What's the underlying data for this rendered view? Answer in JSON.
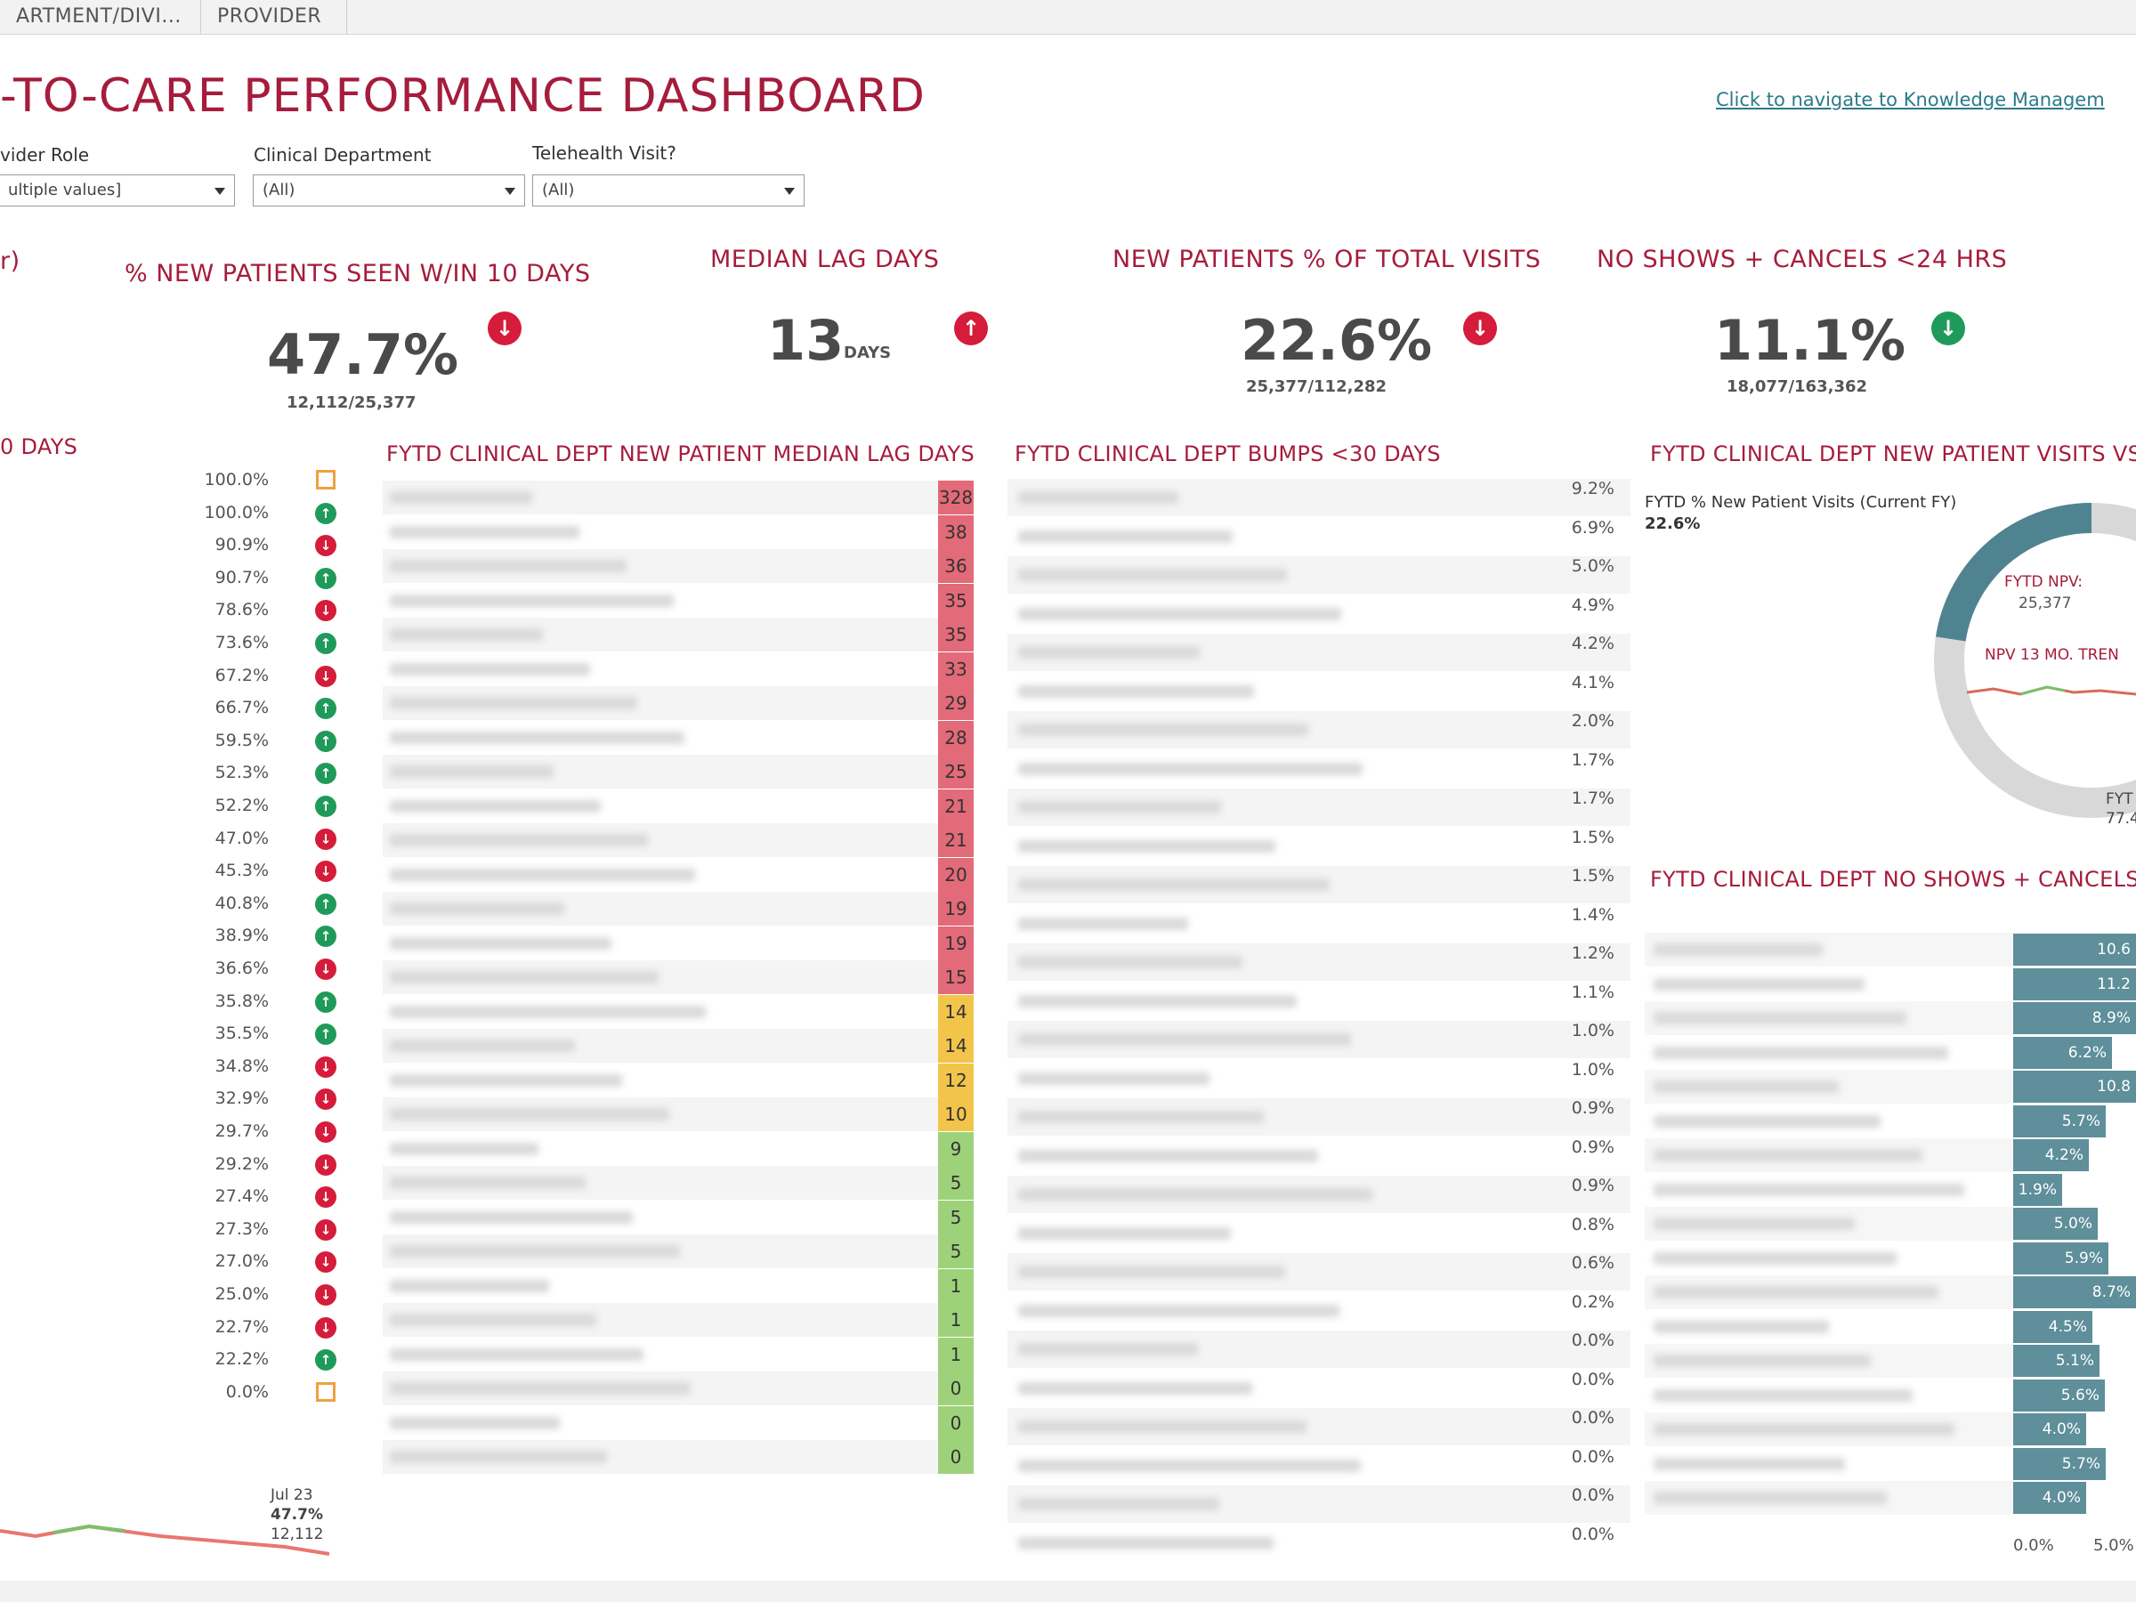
{
  "tabs": [
    "ARTMENT/DIVI...",
    "PROVIDER"
  ],
  "title": "-TO-CARE PERFORMANCE DASHBOARD",
  "nav_link": "Click to navigate to Knowledge Managem",
  "filters": [
    {
      "label": "vider Role",
      "value": "ultiple values]"
    },
    {
      "label": "Clinical Department",
      "value": "(All)"
    },
    {
      "label": "Telehealth Visit?",
      "value": "(All)"
    }
  ],
  "left_edge_label": "r)",
  "kpis": [
    {
      "title": "% NEW PATIENTS SEEN W/IN 10 DAYS",
      "value": "47.7%",
      "unit": "",
      "sub": "12,112/25,377",
      "trend": "down"
    },
    {
      "title": "MEDIAN LAG DAYS",
      "value": "13",
      "unit": "DAYS",
      "sub": "",
      "trend": "up"
    },
    {
      "title": "NEW PATIENTS % OF TOTAL VISITS",
      "value": "22.6%",
      "unit": "",
      "sub": "25,377/112,282",
      "trend": "down"
    },
    {
      "title": "NO SHOWS + CANCELS <24 HRS",
      "value": "11.1%",
      "unit": "",
      "sub": "18,077/163,362",
      "trend": "down"
    }
  ],
  "left_list": {
    "title": "0 DAYS",
    "rows": [
      {
        "pct": "100.0%",
        "icon": "box"
      },
      {
        "pct": "100.0%",
        "icon": "up"
      },
      {
        "pct": "90.9%",
        "icon": "down"
      },
      {
        "pct": "90.7%",
        "icon": "up"
      },
      {
        "pct": "78.6%",
        "icon": "down"
      },
      {
        "pct": "73.6%",
        "icon": "up"
      },
      {
        "pct": "67.2%",
        "icon": "down"
      },
      {
        "pct": "66.7%",
        "icon": "up"
      },
      {
        "pct": "59.5%",
        "icon": "up"
      },
      {
        "pct": "52.3%",
        "icon": "up"
      },
      {
        "pct": "52.2%",
        "icon": "up"
      },
      {
        "pct": "47.0%",
        "icon": "down"
      },
      {
        "pct": "45.3%",
        "icon": "down"
      },
      {
        "pct": "40.8%",
        "icon": "up"
      },
      {
        "pct": "38.9%",
        "icon": "up"
      },
      {
        "pct": "36.6%",
        "icon": "down"
      },
      {
        "pct": "35.8%",
        "icon": "up"
      },
      {
        "pct": "35.5%",
        "icon": "up"
      },
      {
        "pct": "34.8%",
        "icon": "down"
      },
      {
        "pct": "32.9%",
        "icon": "down"
      },
      {
        "pct": "29.7%",
        "icon": "down"
      },
      {
        "pct": "29.2%",
        "icon": "down"
      },
      {
        "pct": "27.4%",
        "icon": "down"
      },
      {
        "pct": "27.3%",
        "icon": "down"
      },
      {
        "pct": "27.0%",
        "icon": "down"
      },
      {
        "pct": "25.0%",
        "icon": "down"
      },
      {
        "pct": "22.7%",
        "icon": "down"
      },
      {
        "pct": "22.2%",
        "icon": "up"
      },
      {
        "pct": "0.0%",
        "icon": "box"
      }
    ],
    "spark_label_date": "Jul 23",
    "spark_label_pct": "47.7%",
    "spark_label_count": "12,112"
  },
  "lag_days": {
    "title": "FYTD CLINICAL DEPT NEW PATIENT MEDIAN LAG DAYS",
    "values": [
      328,
      38,
      36,
      35,
      35,
      33,
      29,
      28,
      25,
      21,
      21,
      20,
      19,
      19,
      15,
      14,
      14,
      12,
      10,
      9,
      5,
      5,
      5,
      1,
      1,
      1,
      0,
      0,
      0
    ],
    "colors": {
      "red": "#e36a78",
      "yellow": "#f2c54a",
      "green": "#9ed27a"
    }
  },
  "bumps": {
    "title": "FYTD CLINICAL DEPT BUMPS <30 DAYS",
    "values": [
      "9.2%",
      "6.9%",
      "5.0%",
      "4.9%",
      "4.2%",
      "4.1%",
      "2.0%",
      "1.7%",
      "1.7%",
      "1.5%",
      "1.5%",
      "1.4%",
      "1.2%",
      "1.1%",
      "1.0%",
      "1.0%",
      "0.9%",
      "0.9%",
      "0.9%",
      "0.8%",
      "0.6%",
      "0.2%",
      "0.0%",
      "0.0%",
      "0.0%",
      "0.0%",
      "0.0%",
      "0.0%"
    ]
  },
  "npv": {
    "title": "FYTD CLINICAL DEPT NEW PATIENT VISITS VS. ES",
    "legend_label": "FYTD % New Patient Visits (Current FY)",
    "legend_value": "22.6%",
    "center_label": "FYTD NPV:",
    "center_value": "25,377",
    "trend_label": "NPV 13 MO. TREN",
    "corner_label": "FYT",
    "corner_value": "77.4",
    "donut_fraction": 0.226,
    "colors": {
      "teal": "#4f8390",
      "grey": "#d8d8d8"
    }
  },
  "noshows": {
    "title": "FYTD CLINICAL DEPT NO SHOWS + CANCELS <",
    "values": [
      10.6,
      11.2,
      8.9,
      6.2,
      10.8,
      5.7,
      4.2,
      1.9,
      5.0,
      5.9,
      8.7,
      4.5,
      5.1,
      5.6,
      4.0,
      5.7,
      4.0
    ],
    "labels": [
      "10.6",
      "11.2",
      "8.9%",
      "6.2%",
      "10.8",
      "5.7%",
      "4.2%",
      "1.9%",
      "5.0%",
      "5.9%",
      "8.7%",
      "4.5%",
      "5.1%",
      "5.6%",
      "4.0%",
      "5.7%",
      "4.0%"
    ],
    "axis": [
      "0.0%",
      "5.0%"
    ]
  }
}
